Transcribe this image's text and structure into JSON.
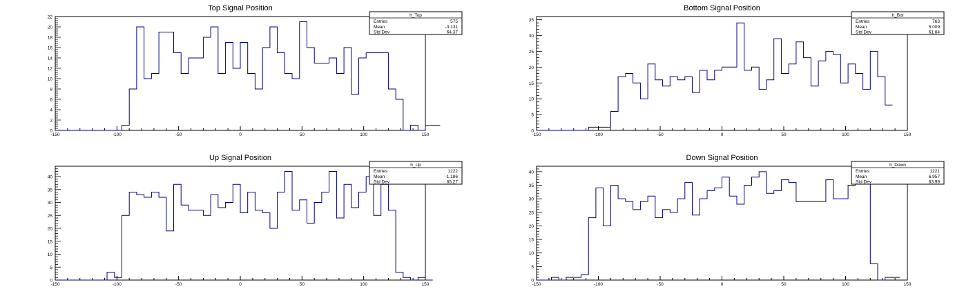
{
  "colors": {
    "line": "#000080",
    "frame": "#000000",
    "background": "#ffffff"
  },
  "stats_labels": {
    "entries": "Entries",
    "mean": "Mean",
    "std_dev": "Std Dev"
  },
  "chart_data": [
    {
      "type": "histogram",
      "title": "Top Signal Position",
      "stats_name": "h_Top",
      "entries": "575",
      "mean": "-3.131",
      "std_dev": "64.37",
      "xlim": [
        -150,
        150
      ],
      "ylim": [
        0,
        22
      ],
      "bin_width": 6,
      "x_ticks": [
        -150,
        -100,
        -50,
        0,
        50,
        100,
        150
      ],
      "y_ticks": [
        0,
        2,
        4,
        6,
        8,
        10,
        12,
        14,
        16,
        18,
        20,
        22
      ],
      "values": [
        0,
        0,
        0,
        0,
        0,
        0,
        0,
        0,
        0,
        1,
        8,
        20,
        10,
        11,
        19,
        19,
        15,
        11,
        14,
        14,
        18,
        20,
        11,
        17,
        12,
        17,
        11,
        8,
        16,
        20,
        15,
        11,
        10,
        21,
        16,
        13,
        13,
        14,
        11,
        16,
        7,
        14,
        15,
        15,
        15,
        8,
        6,
        0,
        1,
        0,
        1,
        1
      ]
    },
    {
      "type": "histogram",
      "title": "Bottom Signal Position",
      "stats_name": "h_Bot",
      "entries": "763",
      "mean": "5.009",
      "std_dev": "61.84",
      "xlim": [
        -150,
        150
      ],
      "ylim": [
        0,
        36
      ],
      "bin_width": 6,
      "x_ticks": [
        -150,
        -100,
        -50,
        0,
        50,
        100,
        150
      ],
      "y_ticks": [
        0,
        5,
        10,
        15,
        20,
        25,
        30,
        35
      ],
      "values": [
        0,
        0,
        0,
        0,
        0,
        0,
        0,
        1,
        1,
        1,
        6,
        17,
        18,
        15,
        10,
        21,
        16,
        14,
        17,
        16,
        17,
        12,
        19,
        16,
        19,
        20,
        20,
        34,
        19,
        20,
        13,
        16,
        29,
        18,
        21,
        28,
        23,
        14,
        22,
        25,
        24,
        15,
        21,
        18,
        13,
        25,
        17,
        8
      ]
    },
    {
      "type": "histogram",
      "title": "Up Signal Position",
      "stats_name": "h_Up",
      "entries": "1222",
      "mean": "-1.186",
      "std_dev": "65.27",
      "xlim": [
        -150,
        150
      ],
      "ylim": [
        0,
        44
      ],
      "bin_width": 6,
      "x_ticks": [
        -150,
        -100,
        -50,
        0,
        50,
        100,
        150
      ],
      "y_ticks": [
        0,
        5,
        10,
        15,
        20,
        25,
        30,
        35,
        40
      ],
      "values": [
        0,
        0,
        0,
        0,
        0,
        0,
        0,
        3,
        1,
        25,
        34,
        33,
        32,
        34,
        32,
        19,
        37,
        29,
        27,
        27,
        25,
        33,
        28,
        30,
        37,
        26,
        34,
        27,
        26,
        20,
        34,
        42,
        27,
        31,
        22,
        30,
        34,
        42,
        24,
        37,
        28,
        34,
        40,
        25,
        37,
        27,
        3,
        1,
        0,
        1,
        0
      ]
    },
    {
      "type": "histogram",
      "title": "Down Signal Position",
      "stats_name": "h_Down",
      "entries": "1221",
      "mean": "6.957",
      "std_dev": "63.99",
      "xlim": [
        -150,
        150
      ],
      "ylim": [
        0,
        42
      ],
      "bin_width": 6,
      "x_ticks": [
        -150,
        -100,
        -50,
        0,
        50,
        100,
        150
      ],
      "y_ticks": [
        0,
        5,
        10,
        15,
        20,
        25,
        30,
        35,
        40
      ],
      "values": [
        0,
        0,
        1,
        0,
        1,
        1,
        2,
        23,
        34,
        20,
        35,
        30,
        29,
        26,
        29,
        31,
        23,
        26,
        25,
        30,
        36,
        24,
        30,
        33,
        34,
        38,
        31,
        28,
        35,
        38,
        40,
        32,
        33,
        37,
        36,
        29,
        29,
        29,
        29,
        37,
        30,
        30,
        35,
        36,
        36,
        6,
        0,
        1,
        1
      ]
    }
  ]
}
